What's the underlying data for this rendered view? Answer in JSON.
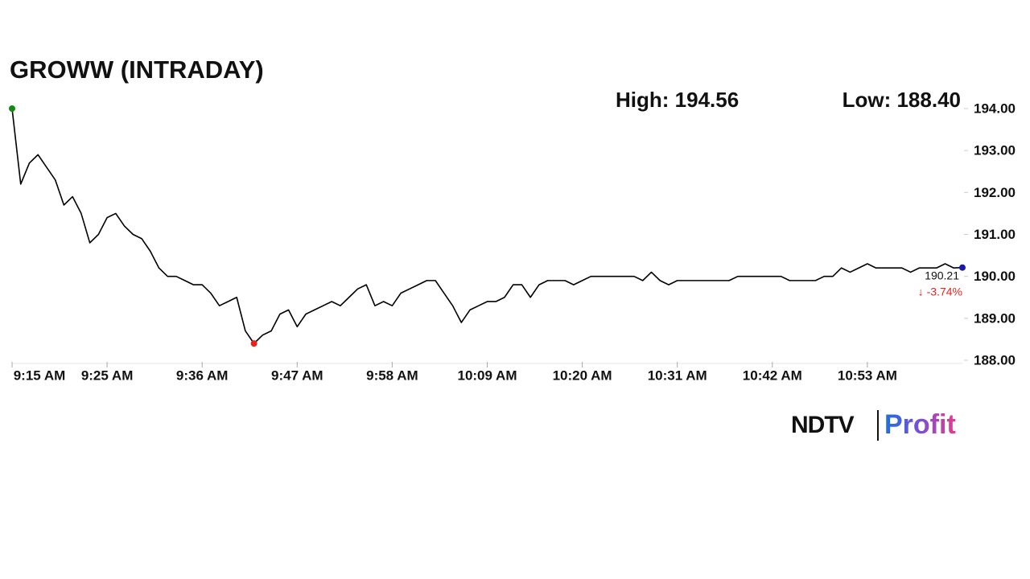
{
  "chart_data": {
    "type": "line",
    "title": "GROWW (INTRADAY)",
    "annotations": [
      "High: 194.56",
      "Low: 188.40",
      "190.21",
      "↓ -3.74%"
    ],
    "brand": [
      "NDTV",
      "Profit"
    ],
    "categories": [
      "9:15 AM",
      null,
      null,
      null,
      null,
      null,
      null,
      null,
      null,
      null,
      null,
      "9:25 AM",
      null,
      null,
      null,
      null,
      null,
      null,
      null,
      null,
      null,
      null,
      "9:36 AM",
      null,
      null,
      null,
      null,
      null,
      null,
      null,
      null,
      null,
      null,
      "9:47 AM",
      null,
      null,
      null,
      null,
      null,
      null,
      null,
      null,
      null,
      null,
      "9:58 AM",
      null,
      null,
      null,
      null,
      null,
      null,
      null,
      null,
      null,
      null,
      "10:09 AM",
      null,
      null,
      null,
      null,
      null,
      null,
      null,
      null,
      null,
      null,
      "10:20 AM",
      null,
      null,
      null,
      null,
      null,
      null,
      null,
      null,
      null,
      null,
      "10:31 AM",
      null,
      null,
      null,
      null,
      null,
      null,
      null,
      null,
      null,
      null,
      "10:42 AM",
      null,
      null,
      null,
      null,
      null,
      null,
      null,
      null,
      null,
      null,
      "10:53 AM",
      null,
      null,
      null,
      null,
      null,
      null,
      null,
      null,
      null,
      null,
      null
    ],
    "series": [
      {
        "color": "#000000",
        "values": [
          194.0,
          192.2,
          192.7,
          192.9,
          192.6,
          192.3,
          191.7,
          191.9,
          191.5,
          190.8,
          191.0,
          191.4,
          191.5,
          191.2,
          191.0,
          190.9,
          190.6,
          190.2,
          190.0,
          190.0,
          189.9,
          189.8,
          189.8,
          189.6,
          189.3,
          189.4,
          189.5,
          188.7,
          188.4,
          188.6,
          188.7,
          189.1,
          189.2,
          188.8,
          189.1,
          189.2,
          189.3,
          189.4,
          189.3,
          189.5,
          189.7,
          189.8,
          189.3,
          189.4,
          189.3,
          189.6,
          189.7,
          189.8,
          189.9,
          189.9,
          189.6,
          189.3,
          188.9,
          189.2,
          189.3,
          189.4,
          189.4,
          189.5,
          189.8,
          189.8,
          189.5,
          189.8,
          189.9,
          189.9,
          189.9,
          189.8,
          189.9,
          190.0,
          190.0,
          190.0,
          190.0,
          190.0,
          190.0,
          189.9,
          190.1,
          189.9,
          189.8,
          189.9,
          189.9,
          189.9,
          189.9,
          189.9,
          189.9,
          189.9,
          190.0,
          190.0,
          190.0,
          190.0,
          190.0,
          190.0,
          189.9,
          189.9,
          189.9,
          189.9,
          190.0,
          190.0,
          190.2,
          190.1,
          190.2,
          190.3,
          190.2,
          190.2,
          190.2,
          190.2,
          190.1,
          190.2,
          190.2,
          190.2,
          190.3,
          190.2,
          190.21
        ]
      }
    ],
    "markers": {
      "start_color": "#138a13",
      "low_color": "#e8231e",
      "end_color": "#1a1aa8"
    },
    "change_color": "#e8231e",
    "ylim": [
      188,
      194
    ],
    "yticks": [
      {
        "value": 188,
        "label": "188.00"
      },
      {
        "value": 189,
        "label": "189.00"
      },
      {
        "value": 190,
        "label": "190.00"
      },
      {
        "value": 191,
        "label": "191.00"
      },
      {
        "value": 192,
        "label": "192.00"
      },
      {
        "value": 193,
        "label": "193.00"
      },
      {
        "value": 194,
        "label": "194.00"
      }
    ]
  }
}
